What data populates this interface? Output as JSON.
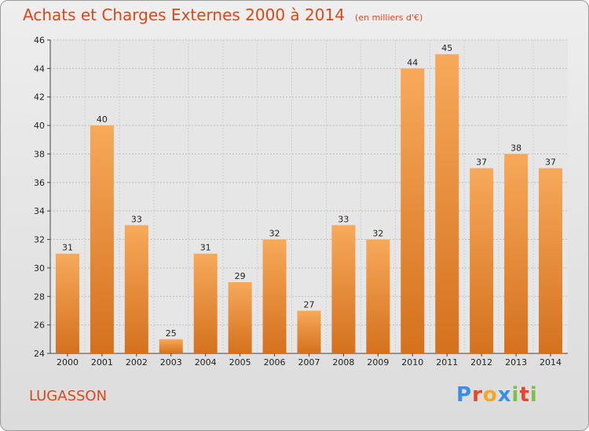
{
  "header": {
    "title": "Achats et Charges Externes 2000 à 2014",
    "subtitle": "(en milliers d'€)"
  },
  "footer": {
    "commune": "LUGASSON",
    "logo_letters": [
      "P",
      "r",
      "o",
      "x",
      "i",
      "t",
      "i"
    ],
    "logo_colors": [
      "#3a8ee6",
      "#e8452c",
      "#f5a623",
      "#3a8ee6",
      "#7bc143",
      "#e8452c",
      "#7bc143"
    ]
  },
  "colors": {
    "accent": "#d9481b",
    "bar_light": "#f7a95a",
    "bar_dark": "#d4711e"
  },
  "chart_data": {
    "type": "bar",
    "title": "Achats et Charges Externes 2000 à 2014",
    "subtitle": "(en milliers d'€)",
    "categories": [
      "2000",
      "2001",
      "2002",
      "2003",
      "2004",
      "2005",
      "2006",
      "2007",
      "2008",
      "2009",
      "2010",
      "2011",
      "2012",
      "2013",
      "2014"
    ],
    "values": [
      31,
      40,
      33,
      25,
      31,
      29,
      32,
      27,
      33,
      32,
      44,
      45,
      37,
      38,
      37
    ],
    "ylim": [
      24,
      46
    ],
    "yticks": [
      24,
      26,
      28,
      30,
      32,
      34,
      36,
      38,
      40,
      42,
      44,
      46
    ],
    "grid": true,
    "legend": "none"
  }
}
